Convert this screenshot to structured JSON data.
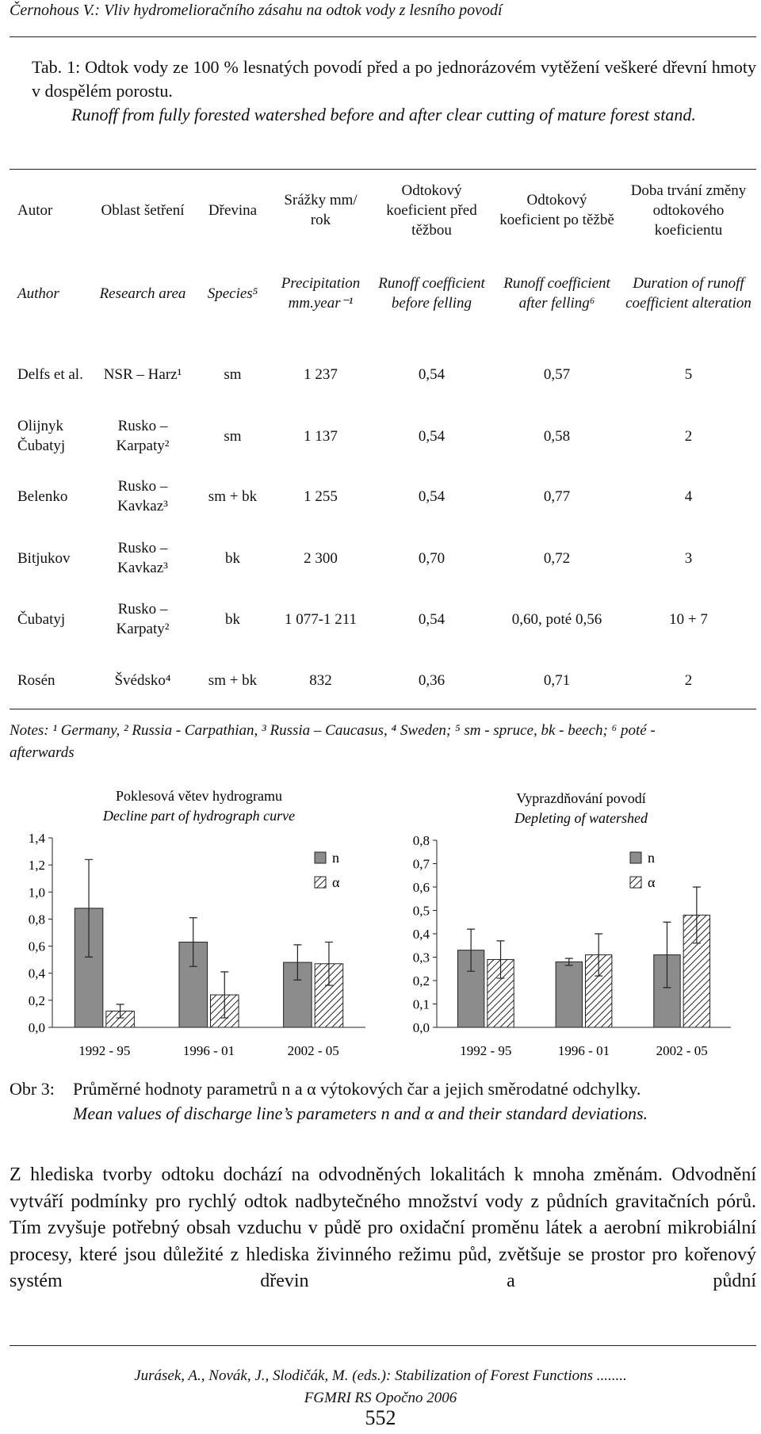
{
  "header": {
    "running_title": "Černohous V.: Vliv hydromelioračního zásahu na odtok vody z lesního povodí"
  },
  "table_caption": {
    "cz": "Tab. 1: Odtok vody ze 100 % lesnatých povodí před a po jednorázovém vytěžení veškeré dřevní hmoty v dospělém porostu.",
    "en": "Runoff from fully forested watershed before and after clear cutting of mature forest stand."
  },
  "table": {
    "header_cz": [
      "Autor",
      "Oblast šetření",
      "Dřevina",
      "Srážky mm/ rok",
      "Odtokový koeficient před těžbou",
      "Odtokový koeficient po těžbě",
      "Doba trvání změny odtokového koeficientu"
    ],
    "header_en": [
      "Author",
      "Research area",
      "Species⁵",
      "Precipitation mm.year⁻¹",
      "Runoff coefficient before felling",
      "Runoff coefficient after felling⁶",
      "Duration of runoff coefficient alteration"
    ],
    "rows": [
      [
        "Delfs et al.",
        "NSR – Harz¹",
        "sm",
        "1 237",
        "0,54",
        "0,57",
        "5"
      ],
      [
        "Olijnyk Čubatyj",
        "Rusko – Karpaty²",
        "sm",
        "1 137",
        "0,54",
        "0,58",
        "2"
      ],
      [
        "Belenko",
        "Rusko – Kavkaz³",
        "sm + bk",
        "1 255",
        "0,54",
        "0,77",
        "4"
      ],
      [
        "Bitjukov",
        "Rusko – Kavkaz³",
        "bk",
        "2 300",
        "0,70",
        "0,72",
        "3"
      ],
      [
        "Čubatyj",
        "Rusko – Karpaty²",
        "bk",
        "1 077-1 211",
        "0,54",
        "0,60, poté 0,56",
        "10 + 7"
      ],
      [
        "Rosén",
        "Švédsko⁴",
        "sm + bk",
        "832",
        "0,36",
        "0,71",
        "2"
      ]
    ]
  },
  "notes": "Notes: ¹ Germany, ² Russia - Carpathian, ³ Russia – Caucasus, ⁴ Sweden; ⁵ sm - spruce, bk - beech; ⁶ poté - afterwards",
  "chart_data": [
    {
      "type": "bar",
      "title": "Poklesová větev hydrogramu",
      "subtitle": "Decline part of hydrograph curve",
      "categories": [
        "1992 - 95",
        "1996 - 01",
        "2002 - 05"
      ],
      "series": [
        {
          "name": "n",
          "color": "#8c8c8c",
          "values": [
            0.88,
            0.63,
            0.48
          ],
          "errors": [
            0.36,
            0.18,
            0.13
          ]
        },
        {
          "name": "α",
          "color": "#ffffff",
          "hatch": true,
          "values": [
            0.12,
            0.24,
            0.47
          ],
          "errors": [
            0.05,
            0.17,
            0.16
          ]
        }
      ],
      "ylim": [
        0,
        1.4
      ],
      "yticks": [
        {
          "value": 0,
          "label": "0,0"
        },
        {
          "value": 0.2,
          "label": "0,2"
        },
        {
          "value": 0.4,
          "label": "0,4"
        },
        {
          "value": 0.6,
          "label": "0,6"
        },
        {
          "value": 0.8,
          "label": "0,8"
        },
        {
          "value": 1.0,
          "label": "1,0"
        },
        {
          "value": 1.2,
          "label": "1,2"
        },
        {
          "value": 1.4,
          "label": "1,4"
        }
      ],
      "legend": "upper right"
    },
    {
      "type": "bar",
      "title": "Vyprazdňování povodí",
      "subtitle": "Depleting of watershed",
      "categories": [
        "1992 - 95",
        "1996 - 01",
        "2002 - 05"
      ],
      "series": [
        {
          "name": "n",
          "color": "#8c8c8c",
          "values": [
            0.33,
            0.28,
            0.31
          ],
          "errors": [
            0.09,
            0.015,
            0.14
          ]
        },
        {
          "name": "α",
          "color": "#ffffff",
          "hatch": true,
          "values": [
            0.29,
            0.31,
            0.48
          ],
          "errors": [
            0.08,
            0.09,
            0.12
          ]
        }
      ],
      "ylim": [
        0,
        0.8
      ],
      "yticks": [
        {
          "value": 0,
          "label": "0,0"
        },
        {
          "value": 0.1,
          "label": "0,1"
        },
        {
          "value": 0.2,
          "label": "0,2"
        },
        {
          "value": 0.3,
          "label": "0,3"
        },
        {
          "value": 0.4,
          "label": "0,4"
        },
        {
          "value": 0.5,
          "label": "0,5"
        },
        {
          "value": 0.6,
          "label": "0,6"
        },
        {
          "value": 0.7,
          "label": "0,7"
        },
        {
          "value": 0.8,
          "label": "0,8"
        }
      ],
      "legend": "upper right"
    }
  ],
  "figure_caption": {
    "label": "Obr 3:",
    "cz": "Průměrné hodnoty parametrů n a α výtokových čar a jejich směrodatné odchylky.",
    "en": "Mean values of discharge line’s parameters n and α and their standard deviations."
  },
  "paragraph": "Z hlediska tvorby odtoku dochází na odvodněných lokalitách k mnoha změnám. Odvodnění vytváří podmínky pro rychlý odtok nadbytečného množství vody z půdních gravitačních pórů. Tím zvyšuje potřebný obsah vzduchu v půdě pro oxidační proměnu látek a aerobní mikrobiální procesy, které jsou důležité z hlediska živinného režimu půd, zvětšuje se prostor pro kořenový systém dřevin a půdní",
  "footer": {
    "line1": "Jurásek, A., Novák, J., Slodičák, M. (eds.): Stabilization of Forest Functions ........",
    "line2": "FGMRI RS Opočno 2006",
    "page_number": "552"
  }
}
